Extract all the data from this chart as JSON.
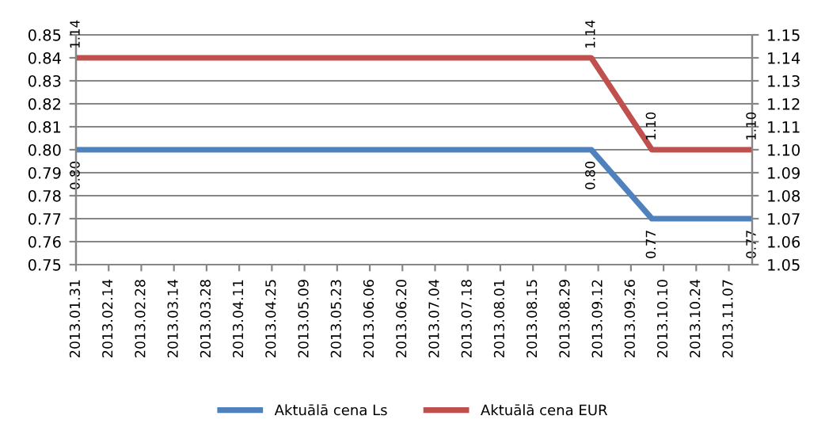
{
  "chart_data": {
    "type": "line",
    "x": [
      "2013-01-31",
      "2013-09-09",
      "2013-10-05",
      "2013-11-17"
    ],
    "series": [
      {
        "name": "Aktuālā cena Ls",
        "color": "#4f81bd",
        "values": [
          0.8,
          0.8,
          0.77,
          0.77
        ],
        "value_labels": [
          "0.80",
          "0.80",
          "0.77",
          "0.77"
        ]
      },
      {
        "name": "Aktuālā cena EUR",
        "color": "#c0504d",
        "axis": "y2",
        "values": [
          1.14,
          1.14,
          1.1,
          1.1
        ],
        "value_labels": [
          "1.14",
          "1.14",
          "1.10",
          "1.10"
        ]
      }
    ],
    "xlim": [
      "2013-01-31",
      "2013-11-17"
    ],
    "xticks": [
      {
        "value": "2013-01-31",
        "label": "2013.01.31"
      },
      {
        "value": "2013-02-14",
        "label": "2013.02.14"
      },
      {
        "value": "2013-02-28",
        "label": "2013.02.28"
      },
      {
        "value": "2013-03-14",
        "label": "2013.03.14"
      },
      {
        "value": "2013-03-28",
        "label": "2013.03.28"
      },
      {
        "value": "2013-04-11",
        "label": "2013.04.11"
      },
      {
        "value": "2013-04-25",
        "label": "2013.04.25"
      },
      {
        "value": "2013-05-09",
        "label": "2013.05.09"
      },
      {
        "value": "2013-05-23",
        "label": "2013.05.23"
      },
      {
        "value": "2013-06-06",
        "label": "2013.06.06"
      },
      {
        "value": "2013-06-20",
        "label": "2013.06.20"
      },
      {
        "value": "2013-07-04",
        "label": "2013.07.04"
      },
      {
        "value": "2013-07-18",
        "label": "2013.07.18"
      },
      {
        "value": "2013-08-01",
        "label": "2013.08.01"
      },
      {
        "value": "2013-08-15",
        "label": "2013.08.15"
      },
      {
        "value": "2013-08-29",
        "label": "2013.08.29"
      },
      {
        "value": "2013-09-12",
        "label": "2013.09.12"
      },
      {
        "value": "2013-09-26",
        "label": "2013.09.26"
      },
      {
        "value": "2013-10-10",
        "label": "2013.10.10"
      },
      {
        "value": "2013-10-24",
        "label": "2013.10.24"
      },
      {
        "value": "2013-11-07",
        "label": "2013.11.07"
      }
    ],
    "ylim": [
      0.75,
      0.85
    ],
    "yticks": [
      {
        "value": 0.75,
        "label": "0.75"
      },
      {
        "value": 0.76,
        "label": "0.76"
      },
      {
        "value": 0.77,
        "label": "0.77"
      },
      {
        "value": 0.78,
        "label": "0.78"
      },
      {
        "value": 0.79,
        "label": "0.79"
      },
      {
        "value": 0.8,
        "label": "0.80"
      },
      {
        "value": 0.81,
        "label": "0.81"
      },
      {
        "value": 0.82,
        "label": "0.82"
      },
      {
        "value": 0.83,
        "label": "0.83"
      },
      {
        "value": 0.84,
        "label": "0.84"
      },
      {
        "value": 0.85,
        "label": "0.85"
      }
    ],
    "y2lim": [
      1.05,
      1.15
    ],
    "y2ticks": [
      {
        "value": 1.05,
        "label": "1.05"
      },
      {
        "value": 1.06,
        "label": "1.06"
      },
      {
        "value": 1.07,
        "label": "1.07"
      },
      {
        "value": 1.08,
        "label": "1.08"
      },
      {
        "value": 1.09,
        "label": "1.09"
      },
      {
        "value": 1.1,
        "label": "1.10"
      },
      {
        "value": 1.11,
        "label": "1.11"
      },
      {
        "value": 1.12,
        "label": "1.12"
      },
      {
        "value": 1.13,
        "label": "1.13"
      },
      {
        "value": 1.14,
        "label": "1.14"
      },
      {
        "value": 1.15,
        "label": "1.15"
      }
    ],
    "grid": "y",
    "legend": "bottom",
    "marker": "none",
    "line_style": "solid"
  }
}
